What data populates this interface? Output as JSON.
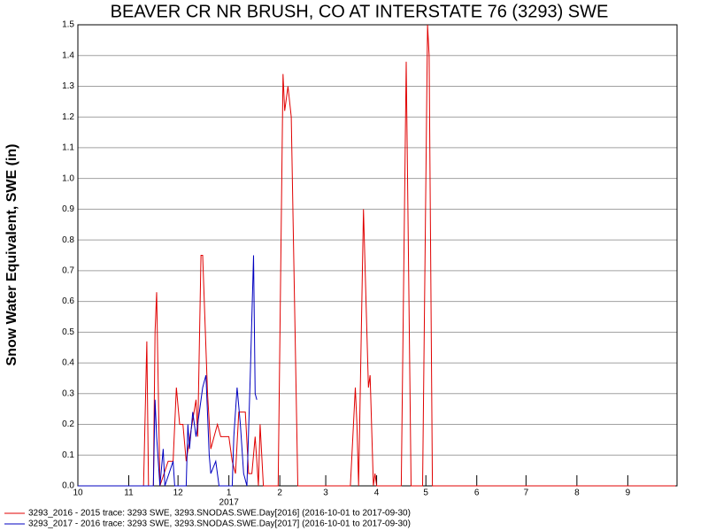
{
  "chart_data": {
    "type": "line",
    "title": "BEAVER CR NR BRUSH, CO AT INTERSTATE 76 (3293) SWE",
    "y_label": "Snow Water Equivalent, SWE (in)",
    "xlim": [
      "2016-10-01",
      "2017-10-01"
    ],
    "xticks": [
      {
        "value": "2016-10-01",
        "label": "10"
      },
      {
        "value": "2016-11-01",
        "label": "11"
      },
      {
        "value": "2016-12-01",
        "label": "12"
      },
      {
        "value": "2017-01-01",
        "label": "1"
      },
      {
        "value": "2017-02-01",
        "label": "2"
      },
      {
        "value": "2017-03-01",
        "label": "3"
      },
      {
        "value": "2017-04-01",
        "label": "4"
      },
      {
        "value": "2017-05-01",
        "label": "5"
      },
      {
        "value": "2017-06-01",
        "label": "6"
      },
      {
        "value": "2017-07-01",
        "label": "7"
      },
      {
        "value": "2017-08-01",
        "label": "8"
      },
      {
        "value": "2017-09-01",
        "label": "9"
      }
    ],
    "annotations": [
      {
        "x": "2017-01-01",
        "text": "2017"
      }
    ],
    "ylim": [
      0,
      1.5
    ],
    "yticks": [
      {
        "value": 0,
        "label": "0.0"
      },
      0.1,
      0.2,
      0.3,
      0.4,
      0.5,
      0.6,
      0.7,
      0.8,
      0.9,
      {
        "value": 1,
        "label": "1.0"
      },
      1.1,
      1.2,
      1.3,
      1.4,
      1.5
    ],
    "grid": true,
    "legend": "bottom-left",
    "series": [
      {
        "name": "3293_2016 - 2015 trace: 3293 SWE, 3293.SNODAS.SWE.Day[2016] (2016-10-01 to 2017-09-30)",
        "color": "#e00000",
        "x": [
          "2016-10-01",
          "2016-11-10",
          "2016-11-12",
          "2016-11-13",
          "2016-11-16",
          "2016-11-17",
          "2016-11-18",
          "2016-11-20",
          "2016-11-25",
          "2016-11-28",
          "2016-11-30",
          "2016-12-02",
          "2016-12-04",
          "2016-12-06",
          "2016-12-08",
          "2016-12-12",
          "2016-12-13",
          "2016-12-15",
          "2016-12-16",
          "2016-12-19",
          "2016-12-21",
          "2016-12-23",
          "2016-12-25",
          "2016-12-27",
          "2017-01-01",
          "2017-01-03",
          "2017-01-05",
          "2017-01-07",
          "2017-01-11",
          "2017-01-13",
          "2017-01-15",
          "2017-01-17",
          "2017-01-18",
          "2017-01-19",
          "2017-01-20",
          "2017-01-22",
          "2017-01-31",
          "2017-02-03",
          "2017-02-04",
          "2017-02-06",
          "2017-02-08",
          "2017-02-12",
          "2017-03-16",
          "2017-03-19",
          "2017-03-20",
          "2017-03-21",
          "2017-03-24",
          "2017-03-27",
          "2017-03-28",
          "2017-03-30",
          "2017-03-31",
          "2017-04-01",
          "2017-04-16",
          "2017-04-19",
          "2017-04-22",
          "2017-04-29",
          "2017-05-02",
          "2017-05-03",
          "2017-05-05",
          "2017-09-30"
        ],
        "values": [
          0,
          0,
          0.47,
          0,
          0,
          0.5,
          0.63,
          0,
          0.08,
          0.08,
          0.32,
          0.2,
          0.2,
          0.08,
          0.15,
          0.28,
          0.16,
          0.75,
          0.75,
          0.3,
          0.12,
          0.16,
          0.2,
          0.16,
          0.16,
          0.08,
          0.04,
          0.24,
          0.24,
          0.04,
          0.04,
          0.16,
          0.08,
          0,
          0.2,
          0,
          0,
          1.34,
          1.22,
          1.3,
          1.2,
          0,
          0,
          0.32,
          0.2,
          0,
          0.9,
          0.32,
          0.36,
          0,
          0.04,
          0,
          0,
          1.38,
          0,
          0,
          1.5,
          1.4,
          0,
          0
        ]
      },
      {
        "name": "3293_2017 - 2016 trace: 3293 SWE, 3293.SNODAS.SWE.Day[2017] (2016-10-01 to 2017-09-30)",
        "color": "#0000c0",
        "x": [
          "2016-10-01",
          "2016-11-16",
          "2016-11-17",
          "2016-11-18",
          "2016-11-20",
          "2016-11-22",
          "2016-11-23",
          "2016-11-28",
          "2016-11-29",
          "2016-12-06",
          "2016-12-07",
          "2016-12-08",
          "2016-12-10",
          "2016-12-12",
          "2016-12-16",
          "2016-12-18",
          "2016-12-20",
          "2016-12-21",
          "2016-12-24",
          "2016-12-26",
          "2017-01-03",
          "2017-01-04",
          "2017-01-06",
          "2017-01-08",
          "2017-01-10",
          "2017-01-12",
          "2017-01-14",
          "2017-01-16",
          "2017-01-17",
          "2017-01-18"
        ],
        "values": [
          0,
          0,
          0.28,
          0.16,
          0,
          0.12,
          0,
          0.08,
          0,
          0,
          0.2,
          0.12,
          0.24,
          0.16,
          0.32,
          0.36,
          0.1,
          0.04,
          0.08,
          0,
          0,
          0.16,
          0.32,
          0.2,
          0.04,
          0,
          0.36,
          0.75,
          0.3,
          0.28
        ]
      }
    ]
  }
}
